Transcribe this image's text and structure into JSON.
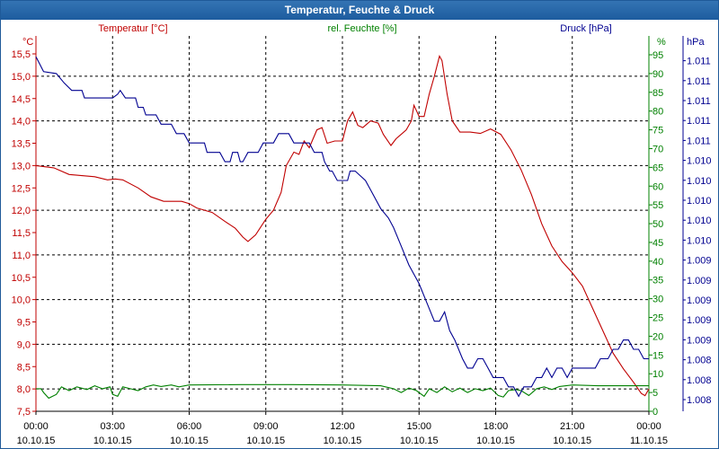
{
  "chart_data": {
    "type": "line",
    "title": "Temperatur, Feuchte & Druck",
    "colors": {
      "temperature": "#c00000",
      "humidity": "#008000",
      "pressure": "#000090",
      "grid": "#000000",
      "title_bar": "#2a6aab"
    },
    "axes": {
      "temperature": {
        "label": "Temperatur [°C]",
        "unit": "°C",
        "ylim": [
          7.5,
          15.5
        ],
        "ticks": [
          "7,5",
          "8,0",
          "8,5",
          "9,0",
          "9,5",
          "10,0",
          "10,5",
          "11,0",
          "11,5",
          "12,0",
          "12,5",
          "13,0",
          "13,5",
          "14,0",
          "14,5",
          "15,0",
          "15,5"
        ]
      },
      "humidity": {
        "label": "rel. Feuchte [%]",
        "unit": "%",
        "ylim": [
          0,
          95
        ],
        "ticks": [
          "0",
          "5",
          "10",
          "15",
          "20",
          "25",
          "30",
          "35",
          "40",
          "45",
          "50",
          "55",
          "60",
          "65",
          "70",
          "75",
          "80",
          "85",
          "90",
          "95"
        ]
      },
      "pressure": {
        "label": "Druck [hPa]",
        "unit": "hPa",
        "ticks": [
          "1.008",
          "1.008",
          "1.008",
          "1.009",
          "1.009",
          "1.009",
          "1.009",
          "1.009",
          "1.010",
          "1.010",
          "1.010",
          "1.010",
          "1.010",
          "1.011",
          "1.011",
          "1.011",
          "1.011",
          "1.011"
        ]
      },
      "x": {
        "xlim_hours": [
          0,
          24
        ],
        "ticks": [
          {
            "time": "00:00",
            "date": "10.10.15"
          },
          {
            "time": "03:00",
            "date": "10.10.15"
          },
          {
            "time": "06:00",
            "date": "10.10.15"
          },
          {
            "time": "09:00",
            "date": "10.10.15"
          },
          {
            "time": "12:00",
            "date": "10.10.15"
          },
          {
            "time": "15:00",
            "date": "10.10.15"
          },
          {
            "time": "18:00",
            "date": "10.10.15"
          },
          {
            "time": "21:00",
            "date": "10.10.15"
          },
          {
            "time": "00:00",
            "date": "11.10.15"
          }
        ]
      }
    },
    "series": [
      {
        "name": "Temperatur [°C]",
        "axis": "temperature",
        "points": [
          [
            0,
            13.0
          ],
          [
            0.7,
            12.95
          ],
          [
            1.3,
            12.8
          ],
          [
            2.3,
            12.75
          ],
          [
            2.8,
            12.68
          ],
          [
            3.1,
            12.7
          ],
          [
            3.4,
            12.68
          ],
          [
            4.0,
            12.5
          ],
          [
            4.5,
            12.3
          ],
          [
            5.0,
            12.2
          ],
          [
            5.7,
            12.2
          ],
          [
            6.0,
            12.15
          ],
          [
            6.3,
            12.05
          ],
          [
            6.9,
            11.95
          ],
          [
            7.4,
            11.75
          ],
          [
            7.8,
            11.6
          ],
          [
            8.1,
            11.4
          ],
          [
            8.3,
            11.3
          ],
          [
            8.6,
            11.45
          ],
          [
            9.0,
            11.8
          ],
          [
            9.3,
            12.0
          ],
          [
            9.6,
            12.4
          ],
          [
            9.8,
            13.0
          ],
          [
            10.1,
            13.3
          ],
          [
            10.3,
            13.25
          ],
          [
            10.5,
            13.55
          ],
          [
            10.7,
            13.4
          ],
          [
            11.0,
            13.8
          ],
          [
            11.2,
            13.85
          ],
          [
            11.4,
            13.5
          ],
          [
            11.7,
            13.55
          ],
          [
            12.0,
            13.55
          ],
          [
            12.2,
            14.0
          ],
          [
            12.4,
            14.2
          ],
          [
            12.6,
            13.9
          ],
          [
            12.8,
            13.85
          ],
          [
            13.1,
            14.0
          ],
          [
            13.4,
            13.95
          ],
          [
            13.6,
            13.7
          ],
          [
            13.9,
            13.45
          ],
          [
            14.1,
            13.6
          ],
          [
            14.3,
            13.7
          ],
          [
            14.5,
            13.8
          ],
          [
            14.7,
            14.0
          ],
          [
            14.8,
            14.35
          ],
          [
            15.0,
            14.1
          ],
          [
            15.2,
            14.1
          ],
          [
            15.4,
            14.6
          ],
          [
            15.6,
            15.0
          ],
          [
            15.8,
            15.45
          ],
          [
            15.9,
            15.35
          ],
          [
            16.1,
            14.6
          ],
          [
            16.3,
            14.0
          ],
          [
            16.6,
            13.75
          ],
          [
            17.0,
            13.75
          ],
          [
            17.4,
            13.72
          ],
          [
            17.8,
            13.82
          ],
          [
            18.2,
            13.7
          ],
          [
            18.6,
            13.35
          ],
          [
            19.0,
            12.9
          ],
          [
            19.4,
            12.35
          ],
          [
            19.8,
            11.7
          ],
          [
            20.2,
            11.2
          ],
          [
            20.6,
            10.85
          ],
          [
            21.0,
            10.6
          ],
          [
            21.4,
            10.3
          ],
          [
            21.8,
            9.8
          ],
          [
            22.2,
            9.3
          ],
          [
            22.6,
            8.8
          ],
          [
            23.0,
            8.45
          ],
          [
            23.4,
            8.15
          ],
          [
            23.7,
            7.9
          ],
          [
            23.85,
            7.85
          ],
          [
            24.0,
            8.0
          ]
        ]
      },
      {
        "name": "rel. Feuchte [%]",
        "axis": "humidity",
        "points": [
          [
            0,
            6.0
          ],
          [
            0.2,
            6.0
          ],
          [
            0.3,
            5.0
          ],
          [
            0.5,
            3.5
          ],
          [
            0.8,
            4.5
          ],
          [
            1.0,
            6.5
          ],
          [
            1.3,
            5.5
          ],
          [
            1.6,
            6.5
          ],
          [
            2.0,
            5.8
          ],
          [
            2.3,
            6.8
          ],
          [
            2.6,
            6.0
          ],
          [
            2.9,
            6.5
          ],
          [
            3.0,
            4.5
          ],
          [
            3.2,
            4.0
          ],
          [
            3.4,
            6.5
          ],
          [
            3.7,
            6.0
          ],
          [
            4.0,
            5.5
          ],
          [
            4.3,
            6.5
          ],
          [
            4.6,
            7.0
          ],
          [
            4.9,
            6.6
          ],
          [
            5.3,
            7.0
          ],
          [
            5.6,
            6.5
          ],
          [
            6.0,
            7.0
          ],
          [
            8.0,
            7.1
          ],
          [
            10.0,
            7.1
          ],
          [
            12.0,
            7.0
          ],
          [
            13.5,
            6.8
          ],
          [
            14.0,
            6.0
          ],
          [
            14.3,
            5.0
          ],
          [
            14.6,
            6.2
          ],
          [
            14.9,
            5.5
          ],
          [
            15.2,
            4.0
          ],
          [
            15.4,
            6.0
          ],
          [
            15.7,
            5.0
          ],
          [
            16.0,
            6.5
          ],
          [
            16.3,
            5.2
          ],
          [
            16.6,
            6.2
          ],
          [
            16.9,
            5.0
          ],
          [
            17.2,
            6.0
          ],
          [
            17.5,
            5.5
          ],
          [
            17.8,
            6.2
          ],
          [
            18.1,
            4.2
          ],
          [
            18.3,
            3.8
          ],
          [
            18.5,
            5.5
          ],
          [
            18.8,
            5.8
          ],
          [
            19.0,
            5.5
          ],
          [
            19.3,
            4.2
          ],
          [
            19.6,
            6.0
          ],
          [
            19.9,
            6.5
          ],
          [
            20.2,
            5.8
          ],
          [
            20.5,
            6.6
          ],
          [
            21.0,
            7.0
          ],
          [
            22.0,
            6.8
          ],
          [
            24.0,
            6.8
          ]
        ]
      },
      {
        "name": "Druck [hPa]",
        "axis": "pressure",
        "points": [
          [
            0,
            94.5
          ],
          [
            0.3,
            90.5
          ],
          [
            0.8,
            90.0
          ],
          [
            1.1,
            87.5
          ],
          [
            1.4,
            85.5
          ],
          [
            1.8,
            85.5
          ],
          [
            1.9,
            83.5
          ],
          [
            3.0,
            83.5
          ],
          [
            3.2,
            84.5
          ],
          [
            3.3,
            85.5
          ],
          [
            3.5,
            83.5
          ],
          [
            3.9,
            83.5
          ],
          [
            4.0,
            81.0
          ],
          [
            4.2,
            81.0
          ],
          [
            4.3,
            79.0
          ],
          [
            4.7,
            79.0
          ],
          [
            4.9,
            76.5
          ],
          [
            5.3,
            76.5
          ],
          [
            5.5,
            74.0
          ],
          [
            5.8,
            74.0
          ],
          [
            6.0,
            71.5
          ],
          [
            6.6,
            71.5
          ],
          [
            6.7,
            69.0
          ],
          [
            7.2,
            69.0
          ],
          [
            7.4,
            66.5
          ],
          [
            7.6,
            66.5
          ],
          [
            7.7,
            69.0
          ],
          [
            7.9,
            69.0
          ],
          [
            8.0,
            66.5
          ],
          [
            8.1,
            66.5
          ],
          [
            8.3,
            69.0
          ],
          [
            8.7,
            69.0
          ],
          [
            8.9,
            71.5
          ],
          [
            9.3,
            71.5
          ],
          [
            9.5,
            74.0
          ],
          [
            9.9,
            74.0
          ],
          [
            10.1,
            71.5
          ],
          [
            10.7,
            71.5
          ],
          [
            10.9,
            69.0
          ],
          [
            11.2,
            69.0
          ],
          [
            11.3,
            66.5
          ],
          [
            11.5,
            64.0
          ],
          [
            11.6,
            64.0
          ],
          [
            11.8,
            61.5
          ],
          [
            12.2,
            61.5
          ],
          [
            12.3,
            64.0
          ],
          [
            12.5,
            64.0
          ],
          [
            12.9,
            61.5
          ],
          [
            13.1,
            59.0
          ],
          [
            13.5,
            54.0
          ],
          [
            13.8,
            51.5
          ],
          [
            14.0,
            49.0
          ],
          [
            14.3,
            44.0
          ],
          [
            14.6,
            39.0
          ],
          [
            15.0,
            34.0
          ],
          [
            15.3,
            29.0
          ],
          [
            15.6,
            24.0
          ],
          [
            15.8,
            24.0
          ],
          [
            16.0,
            26.5
          ],
          [
            16.2,
            21.5
          ],
          [
            16.4,
            19.0
          ],
          [
            16.7,
            14.0
          ],
          [
            16.9,
            11.5
          ],
          [
            17.1,
            11.5
          ],
          [
            17.3,
            14.0
          ],
          [
            17.5,
            14.0
          ],
          [
            17.7,
            11.5
          ],
          [
            17.9,
            9.0
          ],
          [
            18.3,
            9.0
          ],
          [
            18.5,
            6.5
          ],
          [
            18.7,
            6.5
          ],
          [
            18.9,
            4.0
          ],
          [
            19.1,
            6.5
          ],
          [
            19.4,
            6.5
          ],
          [
            19.6,
            9.0
          ],
          [
            19.8,
            9.0
          ],
          [
            20.0,
            11.5
          ],
          [
            20.2,
            9.0
          ],
          [
            20.4,
            11.5
          ],
          [
            20.6,
            11.5
          ],
          [
            20.8,
            9.0
          ],
          [
            21.0,
            11.5
          ],
          [
            21.9,
            11.5
          ],
          [
            22.1,
            14.0
          ],
          [
            22.4,
            14.0
          ],
          [
            22.6,
            16.5
          ],
          [
            22.8,
            16.5
          ],
          [
            23.0,
            19.0
          ],
          [
            23.2,
            19.0
          ],
          [
            23.4,
            16.5
          ],
          [
            23.6,
            16.5
          ],
          [
            23.8,
            14.0
          ],
          [
            24.0,
            14.0
          ]
        ]
      }
    ]
  }
}
